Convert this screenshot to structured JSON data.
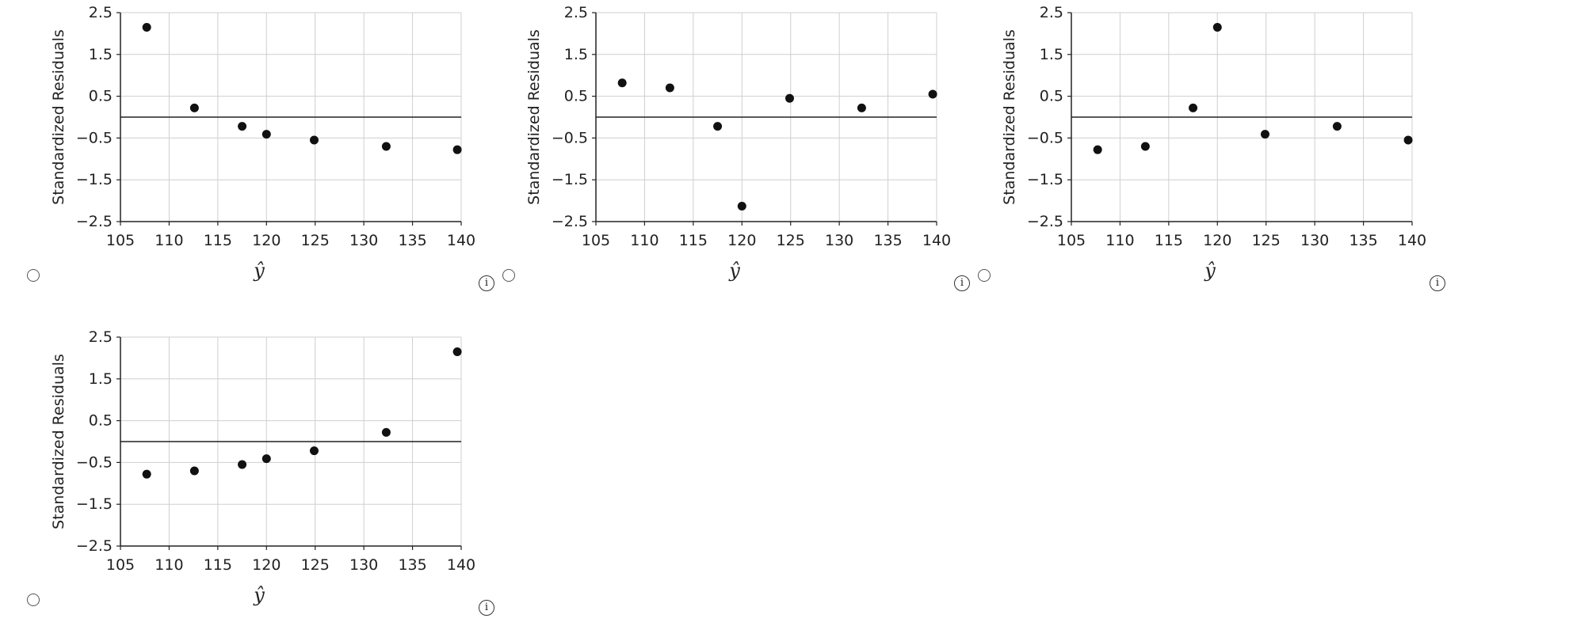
{
  "chart_data": [
    {
      "type": "scatter",
      "xlabel": "ŷ",
      "ylabel": "Standardized Residuals",
      "xlim": [
        105,
        140
      ],
      "ylim": [
        -2.5,
        2.5
      ],
      "xticks": [
        "105",
        "110",
        "115",
        "120",
        "125",
        "130",
        "135",
        "140"
      ],
      "yticks": [
        "2.5",
        "1.5",
        "0.5",
        "−0.5",
        "−1.5",
        "−2.5"
      ],
      "grid": true,
      "reference_line_y": 0,
      "x": [
        107.7,
        112.6,
        117.5,
        120.0,
        124.9,
        132.3,
        139.6
      ],
      "y": [
        2.15,
        0.22,
        -0.22,
        -0.41,
        -0.55,
        -0.7,
        -0.78
      ]
    },
    {
      "type": "scatter",
      "xlabel": "ŷ",
      "ylabel": "Standardized Residuals",
      "xlim": [
        105,
        140
      ],
      "ylim": [
        -2.5,
        2.5
      ],
      "xticks": [
        "105",
        "110",
        "115",
        "120",
        "125",
        "130",
        "135",
        "140"
      ],
      "yticks": [
        "2.5",
        "1.5",
        "0.5",
        "−0.5",
        "−1.5",
        "−2.5"
      ],
      "grid": true,
      "reference_line_y": 0,
      "x": [
        107.7,
        112.6,
        117.5,
        120.0,
        124.9,
        132.3,
        139.6
      ],
      "y": [
        0.82,
        0.7,
        -0.22,
        -2.13,
        0.45,
        0.22,
        0.55
      ]
    },
    {
      "type": "scatter",
      "xlabel": "ŷ",
      "ylabel": "Standardized Residuals",
      "xlim": [
        105,
        140
      ],
      "ylim": [
        -2.5,
        2.5
      ],
      "xticks": [
        "105",
        "110",
        "115",
        "120",
        "125",
        "130",
        "135",
        "140"
      ],
      "yticks": [
        "2.5",
        "1.5",
        "0.5",
        "−0.5",
        "−1.5",
        "−2.5"
      ],
      "grid": true,
      "reference_line_y": 0,
      "x": [
        107.7,
        112.6,
        117.5,
        120.0,
        124.9,
        132.3,
        139.6
      ],
      "y": [
        -0.78,
        -0.7,
        0.22,
        2.15,
        -0.41,
        -0.22,
        -0.55
      ]
    },
    {
      "type": "scatter",
      "xlabel": "ŷ",
      "ylabel": "Standardized Residuals",
      "xlim": [
        105,
        140
      ],
      "ylim": [
        -2.5,
        2.5
      ],
      "xticks": [
        "105",
        "110",
        "115",
        "120",
        "125",
        "130",
        "135",
        "140"
      ],
      "yticks": [
        "2.5",
        "1.5",
        "0.5",
        "−0.5",
        "−1.5",
        "−2.5"
      ],
      "grid": true,
      "reference_line_y": 0,
      "x": [
        107.7,
        112.6,
        117.5,
        120.0,
        124.9,
        132.3,
        139.6
      ],
      "y": [
        -0.78,
        -0.7,
        -0.55,
        -0.41,
        -0.22,
        0.22,
        2.15
      ]
    }
  ],
  "options": [
    {
      "radio_icon": "radio-circle-icon",
      "info_icon": "info-icon",
      "info_glyph": "i"
    },
    {
      "radio_icon": "radio-circle-icon",
      "info_icon": "info-icon",
      "info_glyph": "i"
    },
    {
      "radio_icon": "radio-circle-icon",
      "info_icon": "info-icon",
      "info_glyph": "i"
    },
    {
      "radio_icon": "radio-circle-icon",
      "info_icon": "info-icon",
      "info_glyph": "i"
    }
  ]
}
